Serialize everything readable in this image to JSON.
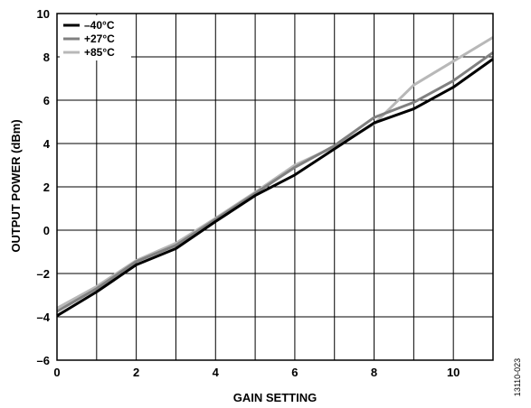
{
  "chart_data": {
    "type": "line",
    "xlabel": "GAIN SETTING",
    "ylabel": "OUTPUT POWER (dBm)",
    "xlim": [
      0,
      11
    ],
    "ylim": [
      -6,
      10
    ],
    "x_ticks": [
      "0",
      "2",
      "4",
      "6",
      "8",
      "10"
    ],
    "y_ticks": [
      "–6",
      "–4",
      "–2",
      "0",
      "2",
      "4",
      "6",
      "8",
      "10"
    ],
    "grid": true,
    "legend_position": "top-left",
    "x": [
      0,
      1,
      2,
      3,
      4,
      5,
      6,
      7,
      8,
      9,
      10,
      11
    ],
    "series": [
      {
        "name": "–40°C",
        "color": "#000000",
        "values": [
          -3.95,
          -2.85,
          -1.6,
          -0.85,
          0.4,
          1.6,
          2.55,
          3.75,
          4.95,
          5.6,
          6.6,
          7.9
        ]
      },
      {
        "name": "+27°C",
        "color": "#808080",
        "values": [
          -3.75,
          -2.7,
          -1.45,
          -0.7,
          0.5,
          1.7,
          2.9,
          3.9,
          5.2,
          5.9,
          6.9,
          8.2
        ]
      },
      {
        "name": "+85°C",
        "color": "#b8b8b8",
        "values": [
          -3.6,
          -2.6,
          -1.4,
          -0.6,
          0.55,
          1.75,
          3.0,
          3.85,
          4.9,
          6.7,
          7.8,
          8.9
        ]
      }
    ]
  },
  "figure_id": "13110-023"
}
